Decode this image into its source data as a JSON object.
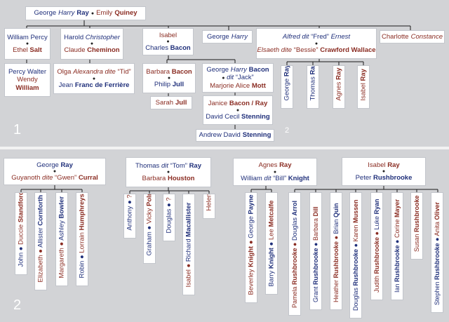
{
  "section1": {
    "number": "1",
    "note": "2",
    "top_couple": {
      "a_first": "George",
      "a_middle": "Harry",
      "a_last": "Ray",
      "b_first": "Emily",
      "b_last": "Quiney"
    },
    "william": {
      "first": "William",
      "percy": "Percy",
      "ethel_first": "Ethel",
      "ethel_last": "Salt"
    },
    "percy_walter": {
      "first": "Percy",
      "second": "Walter",
      "wendy": "Wendy",
      "william": "William"
    },
    "harold": {
      "first": "Harold",
      "middle": "Christopher",
      "spouse_first": "Claude",
      "spouse_last": "Cheminon"
    },
    "olga": {
      "first": "Olga",
      "middle": "Alexandra",
      "dite": "dite",
      "nick": "“Tid”",
      "spouse_first": "Jean",
      "spouse_last": "Franc de Ferrière"
    },
    "isabel": {
      "first": "Isabel",
      "spouse_first": "Charles",
      "spouse_last": "Bacon"
    },
    "barbara": {
      "first": "Barbara",
      "last": "Bacon",
      "spouse_first": "Philip",
      "spouse_last": "Jull"
    },
    "sarah": {
      "first": "Sarah",
      "last": "Jull"
    },
    "george_bacon": {
      "first": "George",
      "middle": "Harry",
      "last": "Bacon",
      "dit": "dit",
      "nick": "“Jack”",
      "spouse_first": "Marjorie Alice",
      "spouse_last": "Mott"
    },
    "janice": {
      "first": "Janice",
      "last": "Bacon / Ray",
      "spouse_first": "David Cecil",
      "spouse_last": "Stenning"
    },
    "andrew": {
      "first": "Andrew David",
      "last": "Stenning"
    },
    "george_harry": {
      "first": "George",
      "middle": "Harry"
    },
    "alfred": {
      "first": "Alfred",
      "dit": "dit",
      "nick": "“Fred”",
      "second": "Ernest",
      "spouse_first": "Elsaeth",
      "spouse_dite": "dite",
      "spouse_nick": "“Bessie”",
      "spouse_last": "Crawford Wallace"
    },
    "charlotte": {
      "first": "Charlotte",
      "second": "Constance"
    },
    "ray_children": [
      {
        "first": "George",
        "last": "Ray"
      },
      {
        "first": "Thomas",
        "last": "Ray"
      },
      {
        "first": "Agnes",
        "last": "Ray"
      },
      {
        "first": "Isabel",
        "last": "Ray"
      }
    ]
  },
  "section2": {
    "number": "2",
    "george": {
      "first": "George",
      "last": "Ray",
      "spouse_first": "Guyanoth",
      "spouse_dite": "dite",
      "spouse_nick": "“Gwen”",
      "spouse_last": "Curral",
      "children": [
        {
          "first": "John",
          "spouse_first": "Duccie",
          "spouse_last": "Standford"
        },
        {
          "first": "Elizabeth",
          "spouse_first": "Allister",
          "spouse_last": "Cornforth"
        },
        {
          "first": "Margareth",
          "spouse_first": "Ashley",
          "spouse_last": "Bowler"
        },
        {
          "first": "Robin",
          "spouse_first": "Lorrain",
          "spouse_last": "Humphreys"
        }
      ]
    },
    "thomas": {
      "first": "Thomas",
      "dit": "dit",
      "nick": "“Tom”",
      "last": "Ray",
      "spouse_first": "Barbara",
      "spouse_last": "Houston",
      "children": [
        {
          "first": "Anthony",
          "spouse_first": "?",
          "spouse_last": ""
        },
        {
          "first": "Graham",
          "spouse_first": "Vicky",
          "spouse_last": "Polnton"
        },
        {
          "first": "Douglas",
          "spouse_first": "?",
          "spouse_last": ""
        },
        {
          "first": "Isabel",
          "spouse_first": "Richard",
          "spouse_last": "Macallister"
        },
        {
          "first": "Helen",
          "spouse_first": "",
          "spouse_last": ""
        }
      ]
    },
    "agnes": {
      "first": "Agnes",
      "last": "Ray",
      "spouse_first": "William",
      "spouse_dit": "dit",
      "spouse_nick": "“Bill”",
      "spouse_last": "Knight",
      "children": [
        {
          "first": "Beverley",
          "last": "Knight",
          "spouse_first": "George",
          "spouse_last": "Payne"
        },
        {
          "first": "Barry",
          "last": "Knight",
          "spouse_first": "Lee",
          "spouse_last": "Metcalfe"
        }
      ]
    },
    "isabel": {
      "first": "Isabel",
      "last": "Ray",
      "spouse_first": "Peter",
      "spouse_last": "Rushbrooke",
      "children": [
        {
          "first": "Pamela",
          "last": "Rushbrooke",
          "spouse_first": "Douglas",
          "spouse_last": "Arrol"
        },
        {
          "first": "Grant",
          "last": "Rushbrooke",
          "spouse_first": "Barbara",
          "spouse_last": "Dill"
        },
        {
          "first": "Heather",
          "last": "Rushbrooke",
          "spouse_first": "Brian",
          "spouse_last": "Quin"
        },
        {
          "first": "Douglas",
          "last": "Rushbrooke",
          "spouse_first": "Karen",
          "spouse_last": "Mussen"
        },
        {
          "first": "Judith",
          "last": "Rushbrooke",
          "spouse_first": "Luke",
          "spouse_last": "Ryan"
        },
        {
          "first": "Ian",
          "last": "Rushbrooke",
          "spouse_first": "Corine",
          "spouse_last": "Mayer"
        },
        {
          "first": "Susan",
          "last": "Rushbrooke",
          "spouse_first": "",
          "spouse_last": ""
        },
        {
          "first": "Stephen",
          "last": "Rushbrooke",
          "spouse_first": "Anita",
          "spouse_last": "Oliver"
        }
      ]
    }
  }
}
